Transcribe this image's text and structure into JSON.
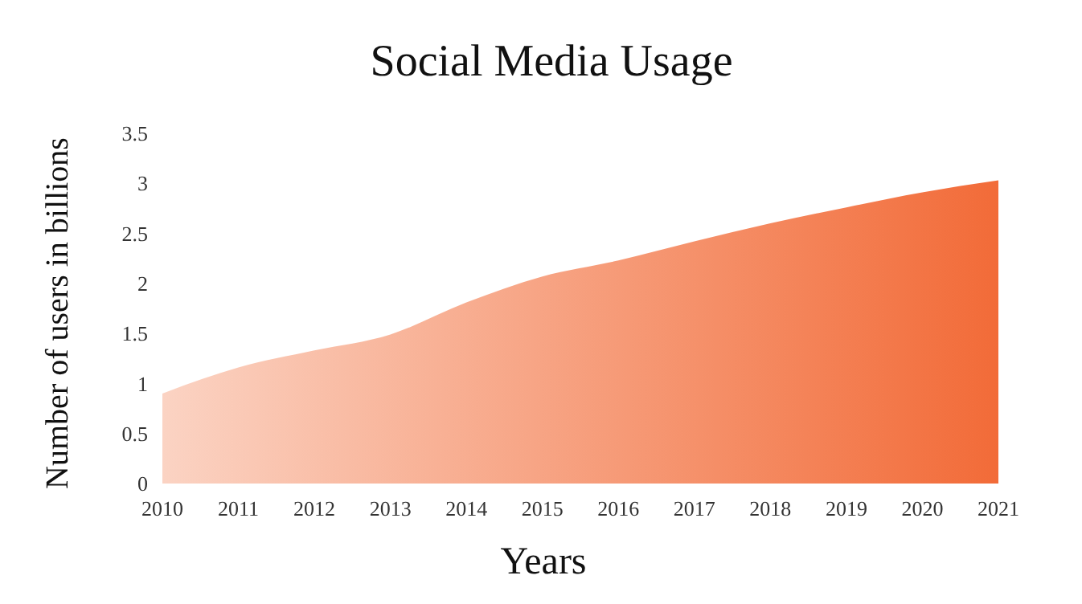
{
  "chart_data": {
    "type": "area",
    "title": "Social Media Usage",
    "xlabel": "Years",
    "ylabel": "Number of users in billions",
    "x": [
      2010,
      2011,
      2012,
      2013,
      2014,
      2015,
      2016,
      2017,
      2018,
      2019,
      2020,
      2021
    ],
    "series": [
      {
        "color": "#f26b38",
        "values": [
          0.9,
          1.16,
          1.33,
          1.49,
          1.81,
          2.07,
          2.23,
          2.42,
          2.6,
          2.76,
          2.91,
          3.03
        ]
      }
    ],
    "xlim": [
      2010,
      2021
    ],
    "xticks": [
      2010,
      2011,
      2012,
      2013,
      2014,
      2015,
      2016,
      2017,
      2018,
      2019,
      2020,
      2021
    ],
    "ylim": [
      0,
      3.5
    ],
    "yticks": [
      0,
      0.5,
      1,
      1.5,
      2,
      2.5,
      3,
      3.5
    ]
  }
}
